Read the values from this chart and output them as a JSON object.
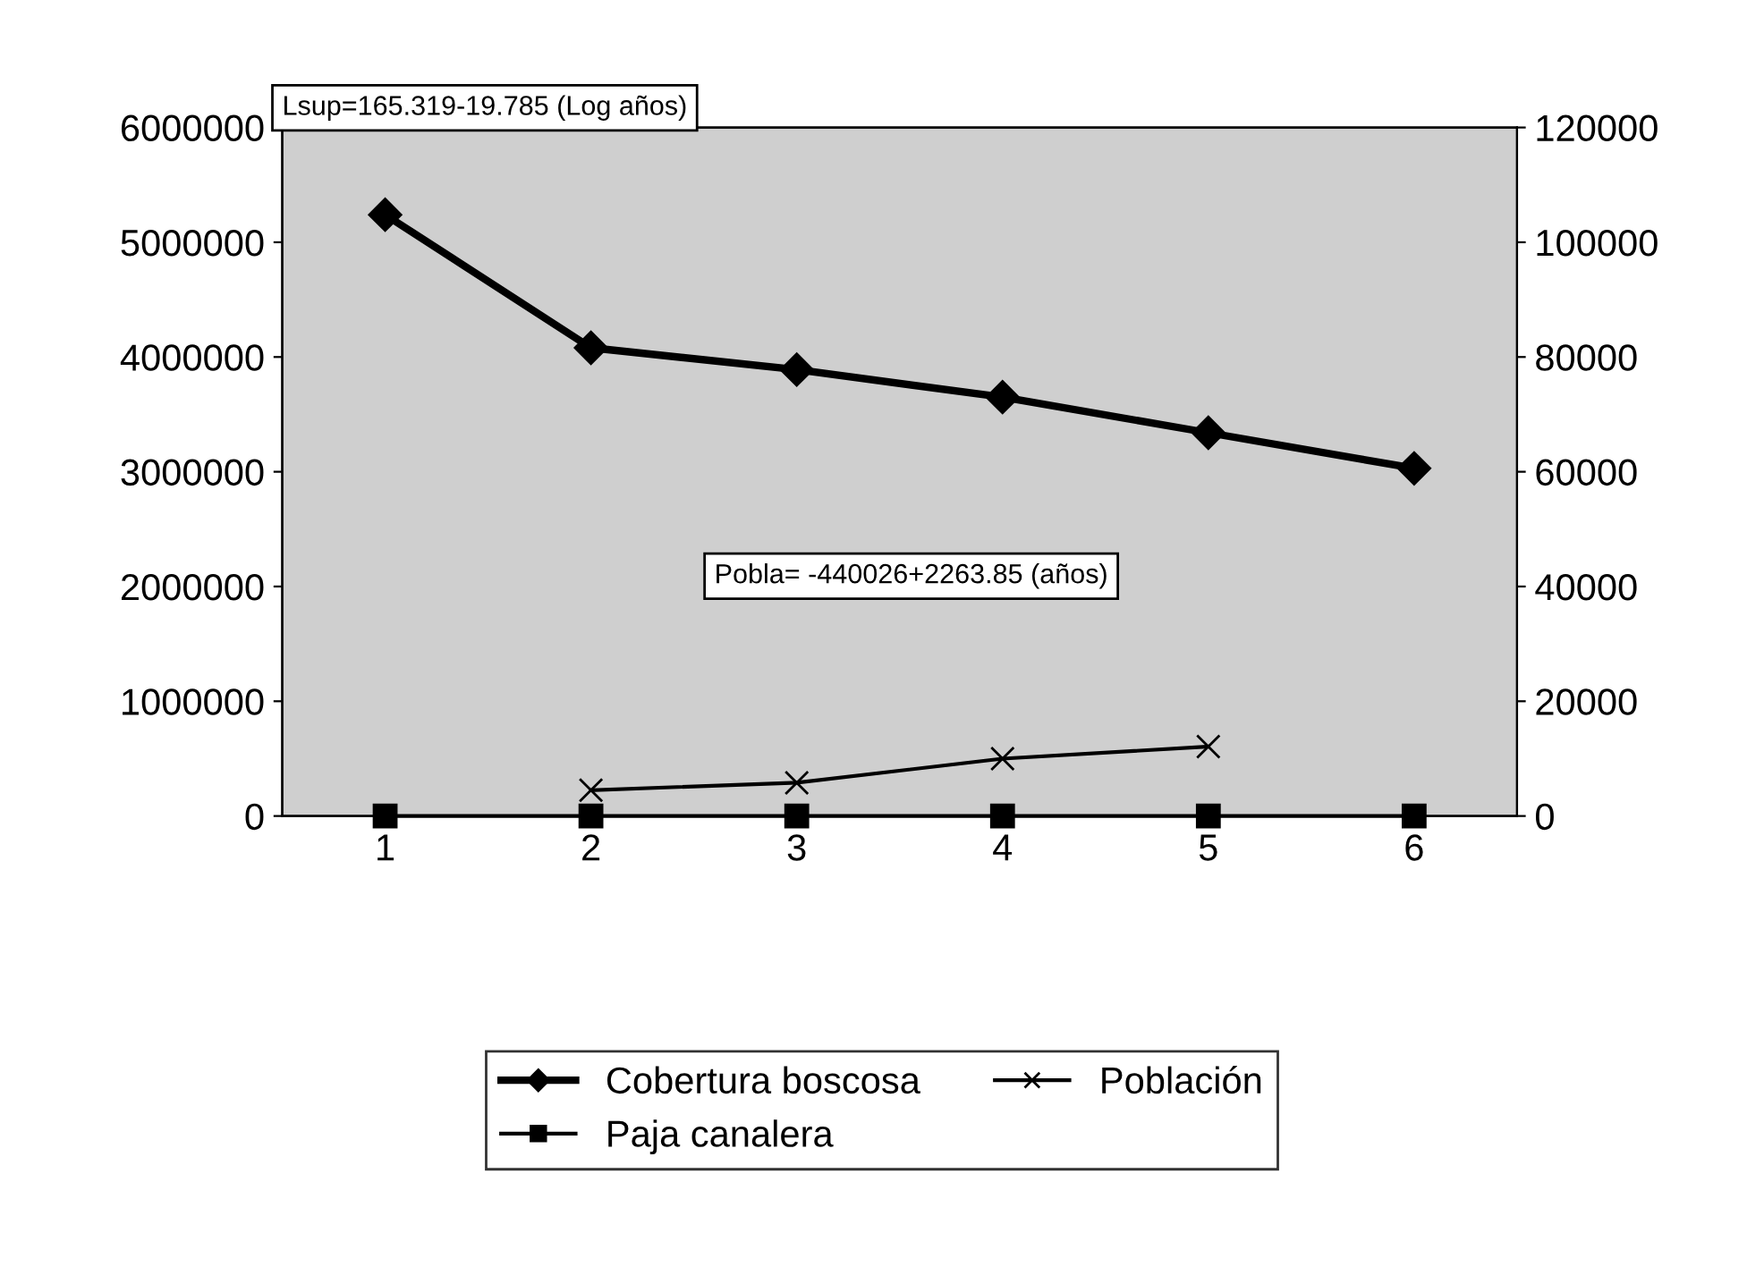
{
  "chart_data": {
    "type": "line",
    "categories": [
      "1",
      "2",
      "3",
      "4",
      "5",
      "6"
    ],
    "series": [
      {
        "name": "Cobertura boscosa",
        "color": "#000000",
        "marker": "diamond",
        "values": [
          5240000,
          4080000,
          3890000,
          3650000,
          3340000,
          3030000
        ]
      },
      {
        "name": "Paja canalera",
        "color": "#000000",
        "marker": "square",
        "values": [
          0,
          0,
          0,
          0,
          0,
          0
        ]
      },
      {
        "name": "Población",
        "color": "#000000",
        "marker": "cross",
        "axis": "y2",
        "values": [
          null,
          4500,
          5800,
          10000,
          12100,
          null
        ]
      }
    ],
    "ylim": [
      0,
      6000000
    ],
    "yticks": [
      0,
      1000000,
      2000000,
      3000000,
      4000000,
      5000000,
      6000000
    ],
    "y2lim": [
      0,
      120000
    ],
    "y2ticks": [
      0,
      20000,
      40000,
      60000,
      80000,
      100000,
      120000
    ],
    "annotations": [
      "Lsup=165.319-19.785 (Log años)",
      "Pobla= -440026+2263.85 (años)"
    ],
    "grid": false,
    "legend": "bottom",
    "line_style": "solid"
  }
}
